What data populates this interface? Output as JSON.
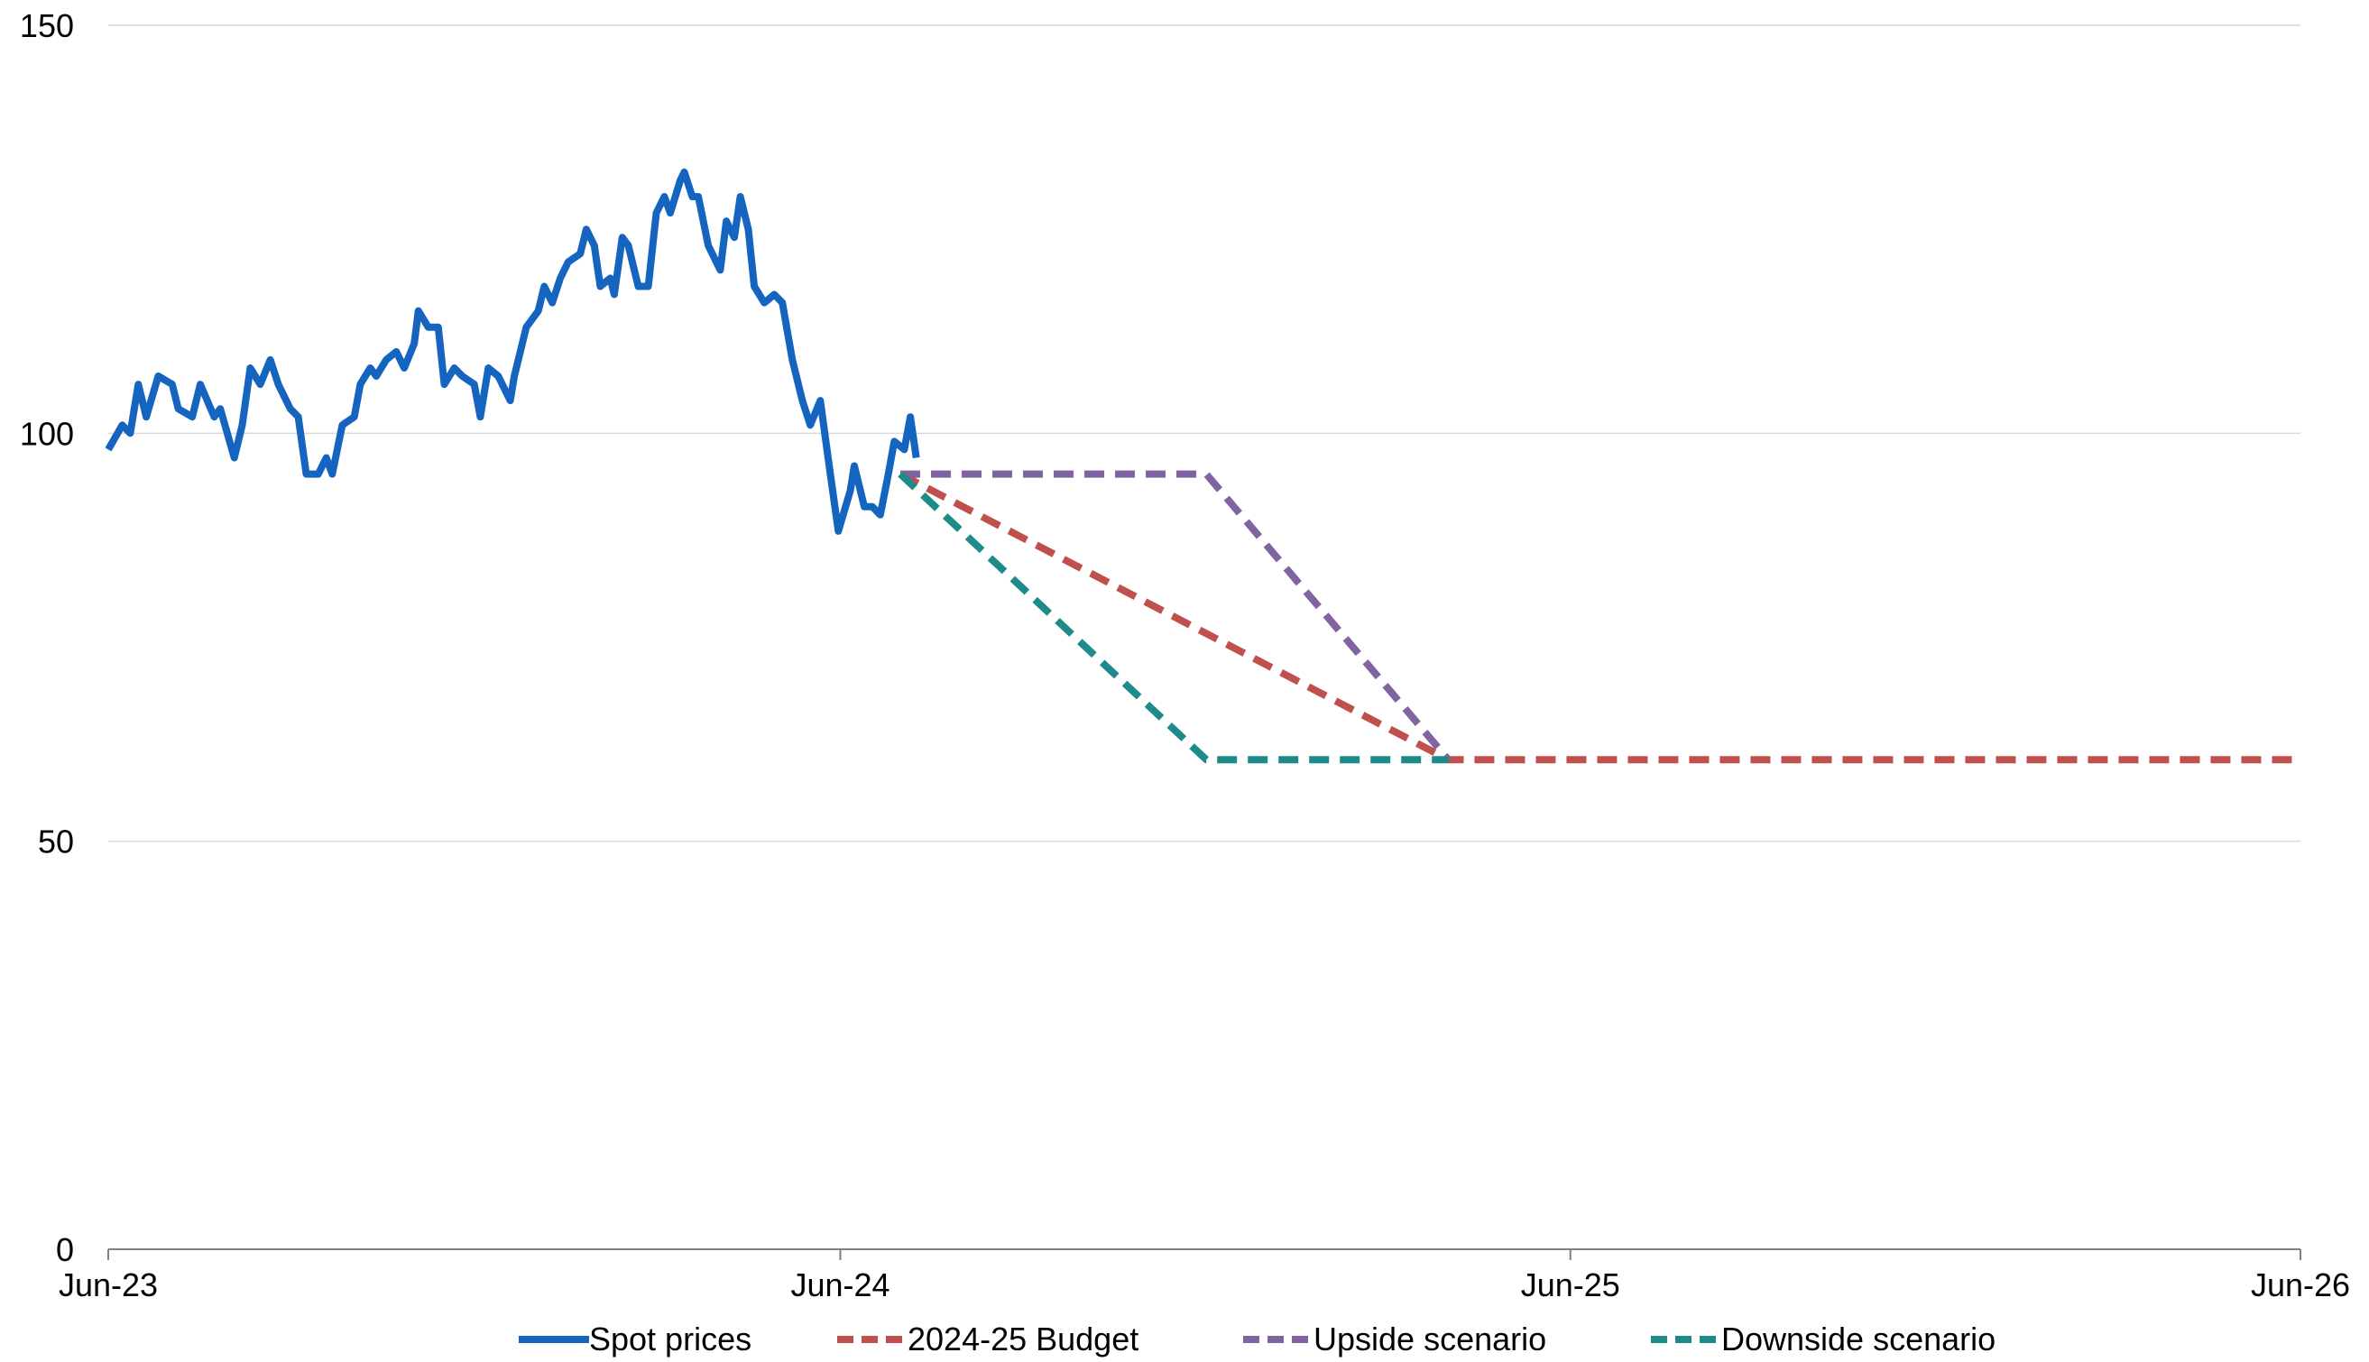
{
  "chart_data": {
    "type": "line",
    "x_axis": {
      "min": "2023-06-01",
      "max": "2026-06-01",
      "ticks": [
        {
          "value": "2023-06-01",
          "label": "Jun-23"
        },
        {
          "value": "2024-06-01",
          "label": "Jun-24"
        },
        {
          "value": "2025-06-01",
          "label": "Jun-25"
        },
        {
          "value": "2026-06-01",
          "label": "Jun-26"
        }
      ]
    },
    "y_axis": {
      "min": 0,
      "max": 150,
      "ticks": [
        {
          "value": 0,
          "label": "0"
        },
        {
          "value": 50,
          "label": "50"
        },
        {
          "value": 100,
          "label": "100"
        },
        {
          "value": 150,
          "label": "150"
        }
      ],
      "gridlines": true
    },
    "legend": {
      "placement": "bottom"
    },
    "series": [
      {
        "name": "Spot prices",
        "color": "#1565C0",
        "style": "solid",
        "points": [
          [
            "2023-06-01",
            98
          ],
          [
            "2023-06-08",
            101
          ],
          [
            "2023-06-12",
            100
          ],
          [
            "2023-06-16",
            106
          ],
          [
            "2023-06-20",
            102
          ],
          [
            "2023-06-26",
            107
          ],
          [
            "2023-07-03",
            106
          ],
          [
            "2023-07-06",
            103
          ],
          [
            "2023-07-13",
            102
          ],
          [
            "2023-07-17",
            106
          ],
          [
            "2023-07-24",
            102
          ],
          [
            "2023-07-27",
            103
          ],
          [
            "2023-08-03",
            97
          ],
          [
            "2023-08-07",
            101
          ],
          [
            "2023-08-11",
            108
          ],
          [
            "2023-08-16",
            106
          ],
          [
            "2023-08-21",
            109
          ],
          [
            "2023-08-25",
            106
          ],
          [
            "2023-08-31",
            103
          ],
          [
            "2023-09-04",
            102
          ],
          [
            "2023-09-08",
            95
          ],
          [
            "2023-09-14",
            95
          ],
          [
            "2023-09-18",
            97
          ],
          [
            "2023-09-21",
            95
          ],
          [
            "2023-09-26",
            101
          ],
          [
            "2023-10-02",
            102
          ],
          [
            "2023-10-05",
            106
          ],
          [
            "2023-10-10",
            108
          ],
          [
            "2023-10-13",
            107
          ],
          [
            "2023-10-18",
            109
          ],
          [
            "2023-10-23",
            110
          ],
          [
            "2023-10-27",
            108
          ],
          [
            "2023-11-01",
            111
          ],
          [
            "2023-11-03",
            115
          ],
          [
            "2023-11-08",
            113
          ],
          [
            "2023-11-13",
            113
          ],
          [
            "2023-11-16",
            106
          ],
          [
            "2023-11-21",
            108
          ],
          [
            "2023-11-25",
            107
          ],
          [
            "2023-12-01",
            106
          ],
          [
            "2023-12-04",
            102
          ],
          [
            "2023-12-08",
            108
          ],
          [
            "2023-12-13",
            107
          ],
          [
            "2023-12-19",
            104
          ],
          [
            "2023-12-21",
            107
          ],
          [
            "2023-12-27",
            113
          ],
          [
            "2024-01-02",
            115
          ],
          [
            "2024-01-05",
            118
          ],
          [
            "2024-01-09",
            116
          ],
          [
            "2024-01-13",
            119
          ],
          [
            "2024-01-17",
            121
          ],
          [
            "2024-01-23",
            122
          ],
          [
            "2024-01-26",
            125
          ],
          [
            "2024-01-30",
            123
          ],
          [
            "2024-02-02",
            118
          ],
          [
            "2024-02-07",
            119
          ],
          [
            "2024-02-09",
            117
          ],
          [
            "2024-02-13",
            124
          ],
          [
            "2024-02-16",
            123
          ],
          [
            "2024-02-21",
            118
          ],
          [
            "2024-02-26",
            118
          ],
          [
            "2024-03-01",
            127
          ],
          [
            "2024-03-05",
            129
          ],
          [
            "2024-03-08",
            127
          ],
          [
            "2024-03-13",
            131
          ],
          [
            "2024-03-15",
            132
          ],
          [
            "2024-03-19",
            129
          ],
          [
            "2024-03-22",
            129
          ],
          [
            "2024-03-27",
            123
          ],
          [
            "2024-04-02",
            120
          ],
          [
            "2024-04-05",
            126
          ],
          [
            "2024-04-09",
            124
          ],
          [
            "2024-04-12",
            129
          ],
          [
            "2024-04-16",
            125
          ],
          [
            "2024-04-19",
            118
          ],
          [
            "2024-04-24",
            116
          ],
          [
            "2024-04-29",
            117
          ],
          [
            "2024-05-03",
            116
          ],
          [
            "2024-05-08",
            109
          ],
          [
            "2024-05-13",
            104
          ],
          [
            "2024-05-17",
            101
          ],
          [
            "2024-05-22",
            104
          ],
          [
            "2024-05-27",
            95
          ],
          [
            "2024-05-31",
            88
          ],
          [
            "2024-06-06",
            93
          ],
          [
            "2024-06-08",
            96
          ],
          [
            "2024-06-13",
            91
          ],
          [
            "2024-06-17",
            91
          ],
          [
            "2024-06-21",
            90
          ],
          [
            "2024-06-25",
            95
          ],
          [
            "2024-06-28",
            99
          ],
          [
            "2024-07-03",
            98
          ],
          [
            "2024-07-06",
            102
          ],
          [
            "2024-07-09",
            97
          ]
        ]
      },
      {
        "name": "2024-25 Budget",
        "color": "#C0504D",
        "style": "dashed",
        "points": [
          [
            "2024-07-01",
            95
          ],
          [
            "2025-04-01",
            60
          ],
          [
            "2026-06-01",
            60
          ]
        ]
      },
      {
        "name": "Upside scenario",
        "color": "#8064A2",
        "style": "dashed",
        "points": [
          [
            "2024-07-01",
            95
          ],
          [
            "2024-12-01",
            95
          ],
          [
            "2025-04-01",
            60
          ]
        ]
      },
      {
        "name": "Downside scenario",
        "color": "#1F8A8A",
        "style": "dashed",
        "points": [
          [
            "2024-07-01",
            95
          ],
          [
            "2024-12-01",
            60
          ],
          [
            "2025-04-01",
            60
          ]
        ]
      }
    ]
  }
}
